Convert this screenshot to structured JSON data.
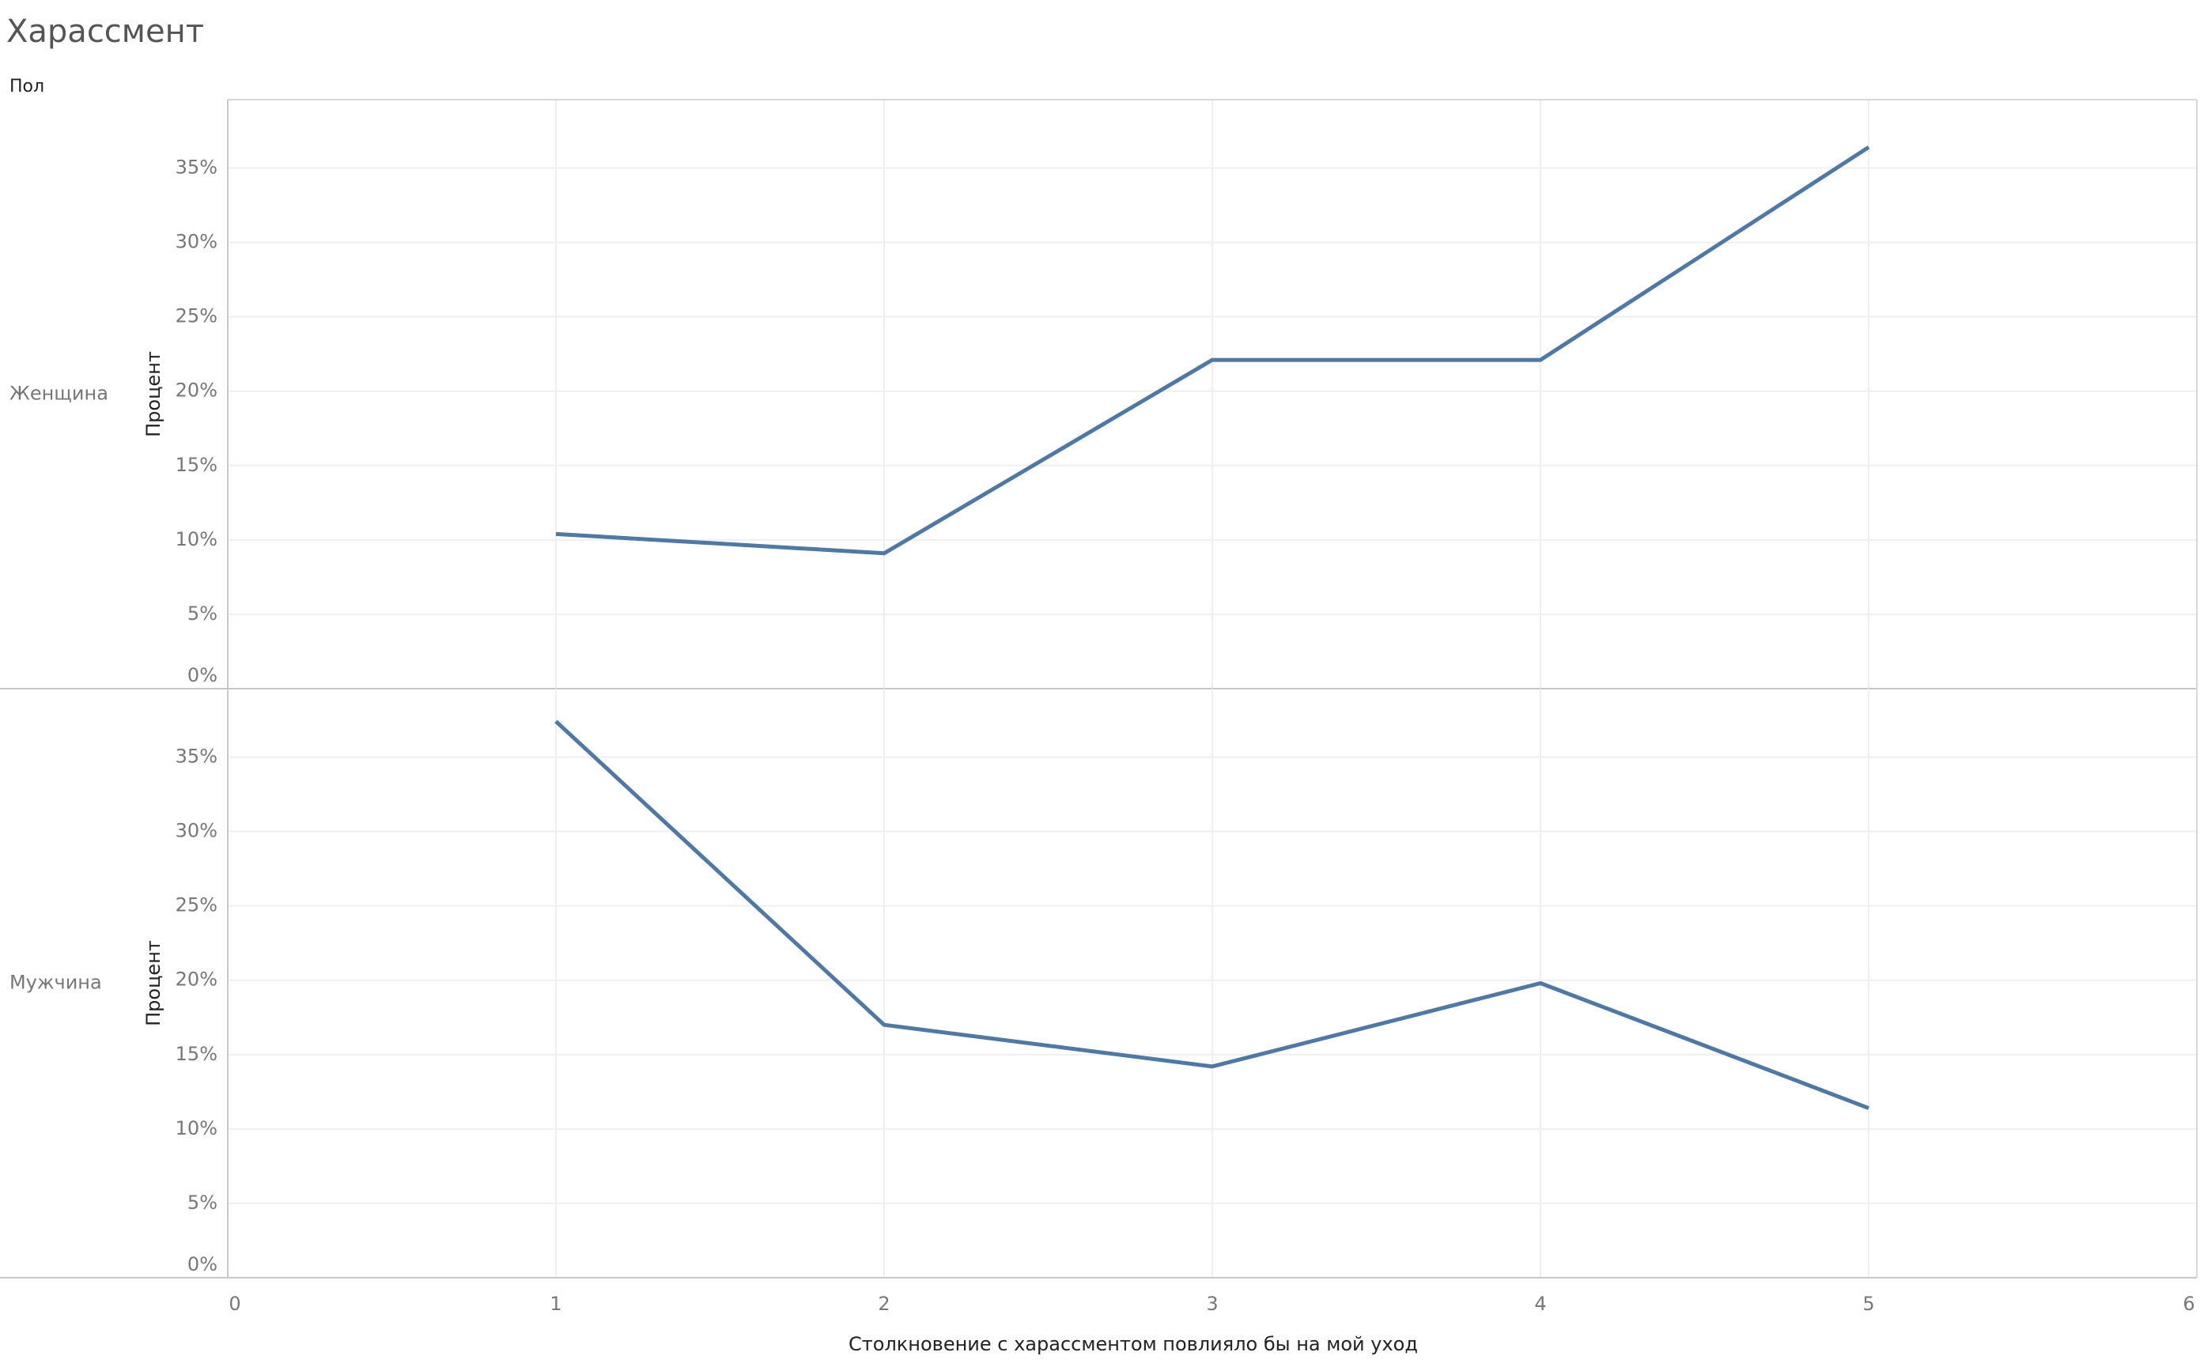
{
  "title": "Харассмент",
  "row_header": "Пол",
  "chart_data": [
    {
      "type": "line",
      "row_label": "Женщина",
      "ylabel": "Процент",
      "x": [
        1,
        2,
        3,
        4,
        5
      ],
      "series": [
        {
          "color": "#4e79a7",
          "values": [
            10.4,
            9.1,
            22.1,
            22.1,
            36.4
          ]
        }
      ],
      "ylim": [
        0,
        39.6
      ],
      "yticks": [
        {
          "value": 0,
          "label": "0%"
        },
        {
          "value": 5,
          "label": "5%"
        },
        {
          "value": 10,
          "label": "10%"
        },
        {
          "value": 15,
          "label": "15%"
        },
        {
          "value": 20,
          "label": "20%"
        },
        {
          "value": 25,
          "label": "25%"
        },
        {
          "value": 30,
          "label": "30%"
        },
        {
          "value": 35,
          "label": "35%"
        }
      ],
      "grid": true
    },
    {
      "type": "line",
      "row_label": "Мужчина",
      "ylabel": "Процент",
      "xlabel": "Столкновение с харассментом повлияло бы на мой уход",
      "x": [
        1,
        2,
        3,
        4,
        5
      ],
      "series": [
        {
          "color": "#4e79a7",
          "values": [
            37.4,
            17.0,
            14.2,
            19.8,
            11.4
          ]
        }
      ],
      "xlim": [
        0,
        6
      ],
      "xticks": [
        0,
        1,
        2,
        3,
        4,
        5,
        6
      ],
      "ylim": [
        0,
        39.6
      ],
      "yticks": [
        {
          "value": 0,
          "label": "0%"
        },
        {
          "value": 5,
          "label": "5%"
        },
        {
          "value": 10,
          "label": "10%"
        },
        {
          "value": 15,
          "label": "15%"
        },
        {
          "value": 20,
          "label": "20%"
        },
        {
          "value": 25,
          "label": "25%"
        },
        {
          "value": 30,
          "label": "30%"
        },
        {
          "value": 35,
          "label": "35%"
        }
      ],
      "grid": true
    }
  ]
}
